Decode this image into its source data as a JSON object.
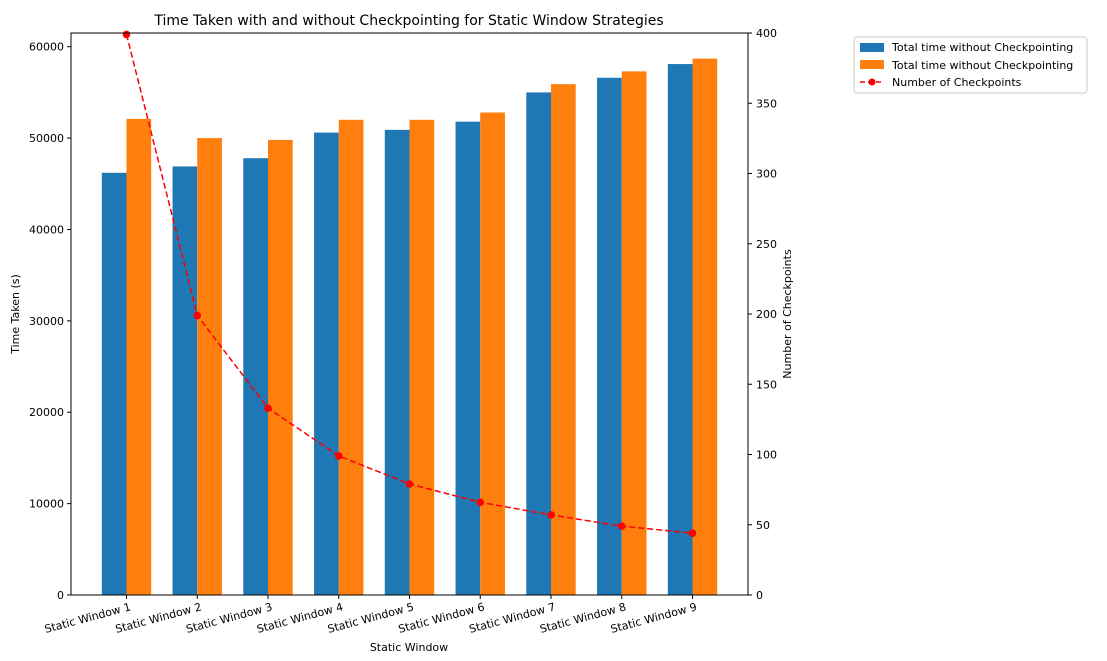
{
  "chart_data": {
    "type": "bar",
    "title": "Time Taken with and without Checkpointing for Static Window Strategies",
    "xlabel": "Static Window",
    "ylabel": "Time Taken (s)",
    "y2label": "Number of Checkpoints",
    "categories": [
      "Static Window 1",
      "Static Window 2",
      "Static Window 3",
      "Static Window 4",
      "Static Window 5",
      "Static Window 6",
      "Static Window 7",
      "Static Window 8",
      "Static Window 9"
    ],
    "series": [
      {
        "name": "Total time without Checkpointing",
        "type": "bar",
        "axis": "left",
        "color": "#1f77b4",
        "values": [
          46200,
          46900,
          47800,
          50600,
          50900,
          51800,
          55000,
          56600,
          58100
        ]
      },
      {
        "name": "Total time without Checkpointing",
        "type": "bar",
        "axis": "left",
        "color": "#ff7f0e",
        "values": [
          52100,
          50000,
          49800,
          52000,
          52000,
          52800,
          55900,
          57300,
          58700
        ]
      },
      {
        "name": "Number of Checkpoints",
        "type": "line",
        "axis": "right",
        "color": "#ff0000",
        "line_style": "dashed",
        "marker": "circle",
        "values": [
          399,
          199,
          133,
          99,
          79,
          66,
          57,
          49,
          44
        ]
      }
    ],
    "ylim": [
      0,
      61500
    ],
    "y2lim": [
      0,
      400
    ],
    "yticks": [
      0,
      10000,
      20000,
      30000,
      40000,
      50000,
      60000
    ],
    "y2ticks": [
      0,
      50,
      100,
      150,
      200,
      250,
      300,
      350,
      400
    ],
    "legend_position": "outside-top-right",
    "grid": false
  }
}
